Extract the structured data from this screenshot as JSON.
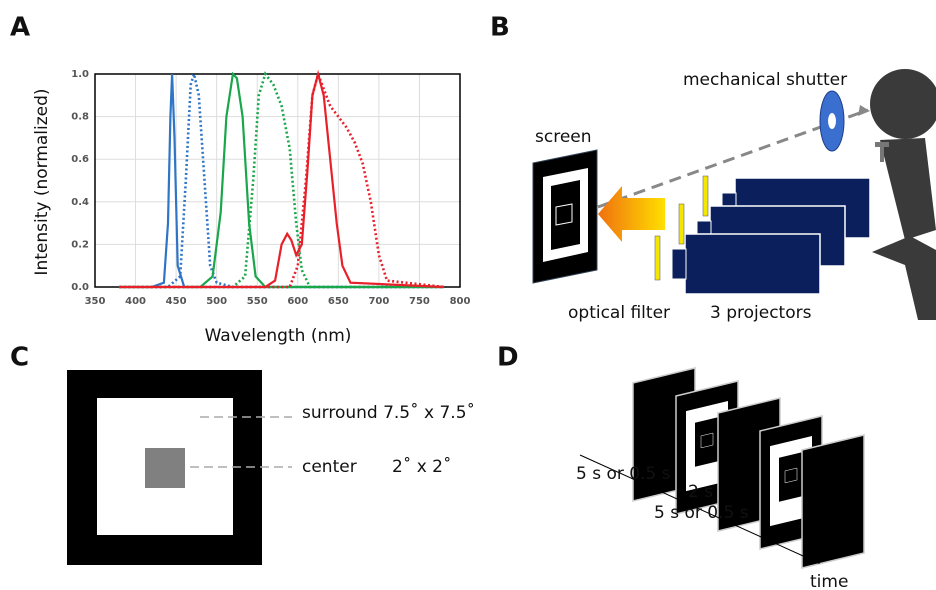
{
  "panel_labels": [
    "A",
    "B",
    "C",
    "D"
  ],
  "chart_data": {
    "type": "line",
    "xlabel": "Wavelength (nm)",
    "ylabel": "Intensity (normalized)",
    "xlim": [
      350,
      800
    ],
    "xticks": [
      350,
      400,
      450,
      500,
      550,
      600,
      650,
      700,
      750,
      800
    ],
    "ylim": [
      0,
      1
    ],
    "yticks": [
      {
        "value": 0,
        "label": "0.0"
      },
      0.2,
      0.4,
      0.6,
      0.8,
      {
        "value": 1,
        "label": "1.0"
      }
    ],
    "grid": true,
    "series": [
      {
        "color": "#2e75c6",
        "style": "solid",
        "x": [
          380,
          420,
          435,
          440,
          443,
          445,
          448,
          452,
          460,
          500,
          780
        ],
        "values": [
          0,
          0,
          0.02,
          0.3,
          0.8,
          1.0,
          0.7,
          0.1,
          0,
          0,
          0
        ]
      },
      {
        "color": "#2e75c6",
        "style": "dotted",
        "x": [
          380,
          440,
          455,
          462,
          468,
          472,
          478,
          485,
          492,
          500,
          520,
          780
        ],
        "values": [
          0,
          0,
          0.05,
          0.5,
          0.95,
          1.0,
          0.9,
          0.5,
          0.1,
          0.02,
          0,
          0
        ]
      },
      {
        "color": "#1aa64a",
        "style": "solid",
        "x": [
          380,
          480,
          495,
          505,
          512,
          520,
          525,
          532,
          540,
          548,
          560,
          780
        ],
        "values": [
          0,
          0,
          0.05,
          0.35,
          0.8,
          1.0,
          0.98,
          0.8,
          0.3,
          0.05,
          0,
          0
        ]
      },
      {
        "color": "#1aa64a",
        "style": "dotted",
        "x": [
          380,
          520,
          535,
          545,
          552,
          560,
          570,
          580,
          590,
          598,
          605,
          615,
          780
        ],
        "values": [
          0,
          0,
          0.05,
          0.5,
          0.9,
          1.0,
          0.95,
          0.85,
          0.65,
          0.3,
          0.08,
          0,
          0
        ]
      },
      {
        "color": "#e8202a",
        "style": "solid",
        "x": [
          380,
          560,
          572,
          580,
          587,
          592,
          598,
          605,
          612,
          618,
          625,
          632,
          640,
          648,
          655,
          665,
          780
        ],
        "values": [
          0,
          0,
          0.03,
          0.2,
          0.25,
          0.22,
          0.15,
          0.2,
          0.55,
          0.9,
          1.0,
          0.9,
          0.6,
          0.3,
          0.1,
          0.02,
          0
        ]
      },
      {
        "color": "#e8202a",
        "style": "dotted",
        "x": [
          380,
          590,
          600,
          610,
          618,
          625,
          632,
          640,
          650,
          660,
          670,
          680,
          690,
          700,
          710,
          780
        ],
        "values": [
          0,
          0,
          0.1,
          0.5,
          0.9,
          1.0,
          0.93,
          0.85,
          0.8,
          0.75,
          0.68,
          0.58,
          0.4,
          0.15,
          0.03,
          0
        ]
      }
    ]
  },
  "setup": {
    "shutter": "mechanical shutter",
    "screen": "screen",
    "filter": "optical filter",
    "projectors": "3 projectors"
  },
  "stimulus": {
    "surround": "surround 7.5˚ x 7.5˚",
    "center": "center",
    "center_size": "2˚ x 2˚"
  },
  "sequence": {
    "durations": [
      "5 s or 0.5 s",
      "2 s",
      "5 s or 0.5 s"
    ],
    "axis": "time"
  }
}
